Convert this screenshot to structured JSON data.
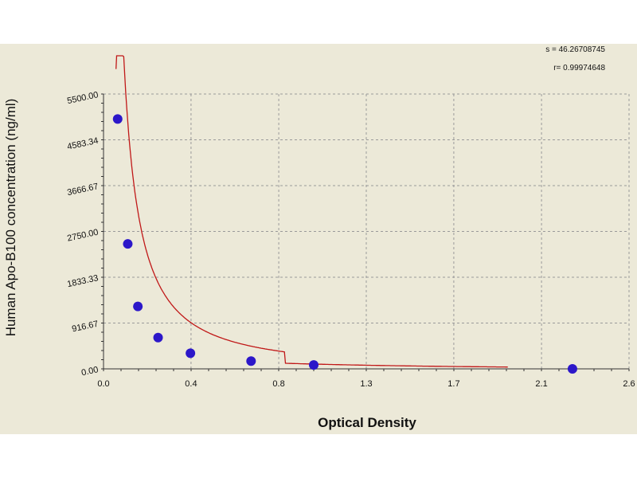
{
  "chart_data": {
    "type": "scatter",
    "title": "",
    "xlabel": "Optical Density",
    "ylabel": "Human Apo-B100 concentration (ng/ml)",
    "xlim": [
      0.0,
      2.6
    ],
    "ylim": [
      0.0,
      5500.0
    ],
    "x_ticks": [
      "0.0",
      "0.4",
      "0.8",
      "1.3",
      "1.7",
      "2.1",
      "2.6"
    ],
    "x_tick_values": [
      0.0,
      0.433,
      0.867,
      1.3,
      1.733,
      2.167,
      2.6
    ],
    "y_ticks": [
      "0.00",
      "916.67",
      "1833.33",
      "2750.00",
      "3666.67",
      "4583.34",
      "5500.00"
    ],
    "y_tick_values": [
      0,
      916.67,
      1833.33,
      2750.0,
      3666.67,
      4583.34,
      5500.0
    ],
    "grid": true,
    "stats": {
      "s_line": "s = 46.26708745",
      "r_line": "r= 0.99974648"
    },
    "series": [
      {
        "points": [
          {
            "x": 0.07,
            "y": 5000
          },
          {
            "x": 0.12,
            "y": 2500
          },
          {
            "x": 0.17,
            "y": 1250
          },
          {
            "x": 0.27,
            "y": 625
          },
          {
            "x": 0.43,
            "y": 312
          },
          {
            "x": 0.73,
            "y": 156
          },
          {
            "x": 1.04,
            "y": 78
          },
          {
            "x": 2.32,
            "y": 0
          }
        ]
      }
    ],
    "colors": {
      "points": "#2c17c9",
      "curve": "#c01818",
      "background": "#ece9d8",
      "grid": "#9a9a9a"
    }
  }
}
